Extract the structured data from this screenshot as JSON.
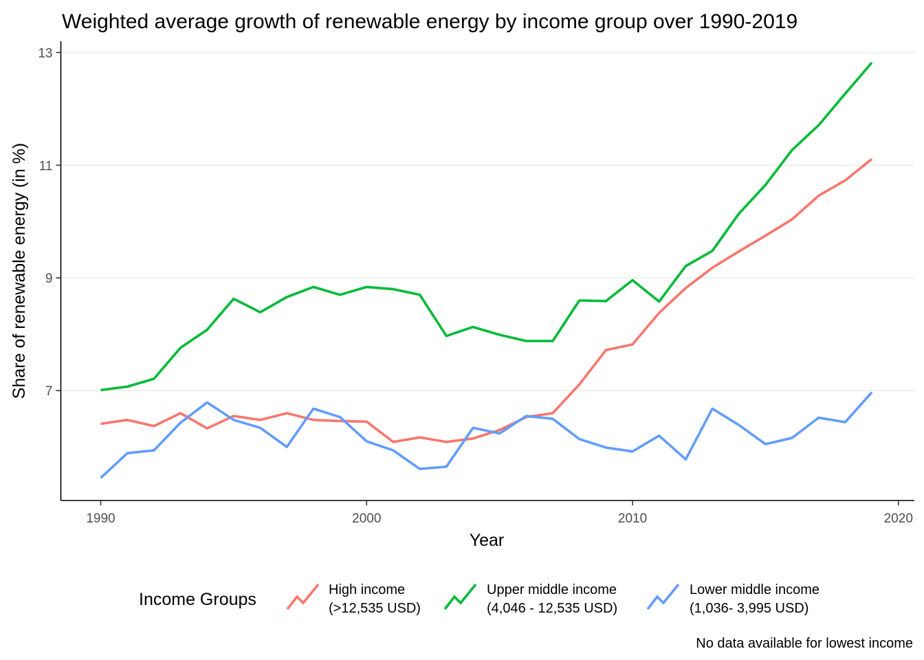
{
  "chart_data": {
    "type": "line",
    "title": "Weighted average growth of renewable energy by income group over 1990-2019",
    "xlabel": "Year",
    "ylabel": "Share of renewable energy (in %)",
    "xlim": [
      1988.5,
      2020.6
    ],
    "ylim": [
      5.05,
      13.2
    ],
    "x_ticks": [
      1990,
      2000,
      2010,
      2020
    ],
    "y_ticks": [
      7,
      9,
      11,
      13
    ],
    "grid": "horizontal major",
    "legend_position": "bottom",
    "legend_title": "Income Groups",
    "caption": "No data available for lowest income",
    "x": [
      1990,
      1991,
      1992,
      1993,
      1994,
      1995,
      1996,
      1997,
      1998,
      1999,
      2000,
      2001,
      2002,
      2003,
      2004,
      2005,
      2006,
      2007,
      2008,
      2009,
      2010,
      2011,
      2012,
      2013,
      2014,
      2015,
      2016,
      2017,
      2018,
      2019
    ],
    "series": [
      {
        "name_line1": "High income",
        "name_line2": "(>12,535 USD)",
        "color": "#F8766D",
        "values": [
          6.41,
          6.48,
          6.37,
          6.6,
          6.33,
          6.55,
          6.48,
          6.6,
          6.48,
          6.46,
          6.45,
          6.09,
          6.17,
          6.09,
          6.15,
          6.3,
          6.53,
          6.6,
          7.11,
          7.72,
          7.82,
          8.38,
          8.82,
          9.18,
          9.47,
          9.75,
          10.04,
          10.46,
          10.73,
          11.11
        ]
      },
      {
        "name_line1": "Upper middle income",
        "name_line2": "(4,046 - 12,535 USD)",
        "color": "#00BA38",
        "values": [
          7.01,
          7.07,
          7.21,
          7.76,
          8.08,
          8.63,
          8.39,
          8.66,
          8.84,
          8.7,
          8.84,
          8.8,
          8.7,
          7.97,
          8.13,
          7.99,
          7.88,
          7.88,
          8.6,
          8.59,
          8.96,
          8.58,
          9.21,
          9.48,
          10.14,
          10.65,
          11.27,
          11.71,
          12.27,
          12.82
        ]
      },
      {
        "name_line1": "Lower middle income",
        "name_line2": "(1,036- 3,995 USD)",
        "color": "#619CFF",
        "values": [
          5.45,
          5.89,
          5.94,
          6.43,
          6.79,
          6.48,
          6.34,
          6.0,
          6.68,
          6.53,
          6.1,
          5.94,
          5.61,
          5.65,
          6.34,
          6.24,
          6.55,
          6.5,
          6.14,
          5.99,
          5.92,
          6.2,
          5.78,
          6.68,
          6.39,
          6.05,
          6.16,
          6.52,
          6.44,
          6.97
        ]
      }
    ]
  }
}
